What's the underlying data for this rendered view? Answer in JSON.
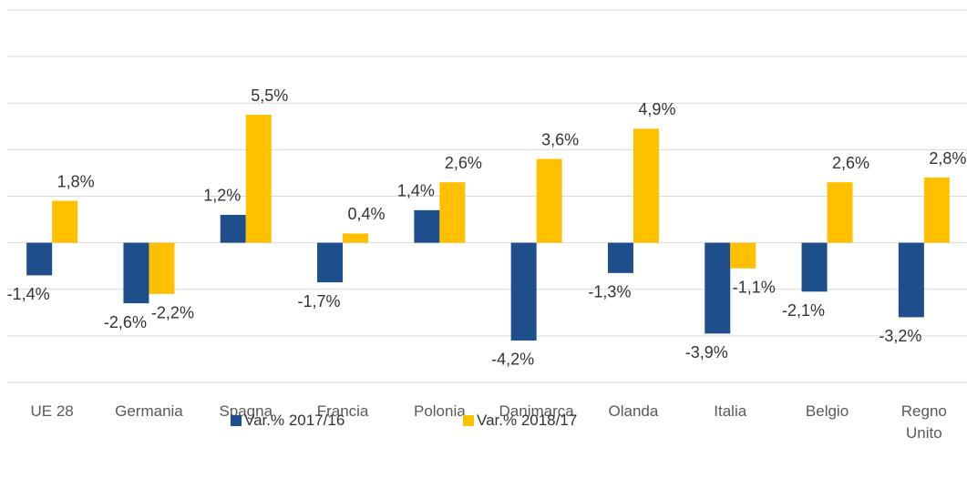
{
  "chart_data": {
    "type": "bar",
    "categories": [
      "UE 28",
      "Germania",
      "Spagna",
      "Francia",
      "Polonia",
      "Danimarca",
      "Olanda",
      "Italia",
      "Belgio",
      "Regno Unito"
    ],
    "series": [
      {
        "name": "Var.% 2017/16",
        "color": "#1f4e8c",
        "values": [
          -1.4,
          -2.6,
          1.2,
          -1.7,
          1.4,
          -4.2,
          -1.3,
          -3.9,
          -2.1,
          -3.2
        ],
        "value_labels": [
          "-1,4%",
          "-2,6%",
          "1,2%",
          "-1,7%",
          "1,4%",
          "-4,2%",
          "-1,3%",
          "-3,9%",
          "-2,1%",
          "-3,2%"
        ]
      },
      {
        "name": "Var.% 2018/17",
        "color": "#ffc000",
        "values": [
          1.8,
          -2.2,
          5.5,
          0.4,
          2.6,
          3.6,
          4.9,
          -1.1,
          2.6,
          2.8
        ],
        "value_labels": [
          "1,8%",
          "-2,2%",
          "5,5%",
          "0,4%",
          "2,6%",
          "3,6%",
          "4,9%",
          "-1,1%",
          "2,6%",
          "2,8%"
        ]
      }
    ],
    "ylim": [
      -6,
      10
    ],
    "yticks": [
      -6,
      -4,
      -2,
      0,
      2,
      4,
      6,
      8,
      10
    ],
    "grid": true
  }
}
